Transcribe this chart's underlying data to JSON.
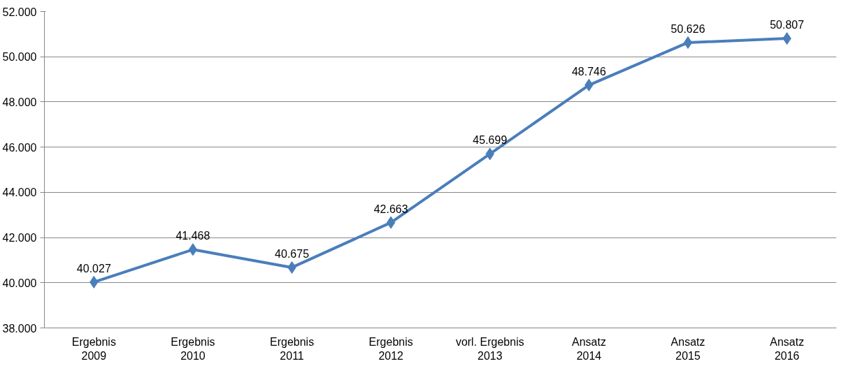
{
  "chart_data": {
    "type": "line",
    "categories": [
      "Ergebnis\n2009",
      "Ergebnis\n2010",
      "Ergebnis\n2011",
      "Ergebnis\n2012",
      "vorl. Ergebnis\n2013",
      "Ansatz\n2014",
      "Ansatz\n2015",
      "Ansatz\n2016"
    ],
    "series": [
      {
        "color": "#4a7ebb",
        "values": [
          40027,
          41468,
          40675,
          42663,
          45699,
          48746,
          50626,
          50807
        ],
        "value_labels": [
          "40.027",
          "41.468",
          "40.675",
          "42.663",
          "45.699",
          "48.746",
          "50.626",
          "50.807"
        ]
      }
    ],
    "ylim": [
      38000,
      52000
    ],
    "yticks": [
      {
        "value": 38000,
        "label": "38.000"
      },
      {
        "value": 40000,
        "label": "40.000"
      },
      {
        "value": 42000,
        "label": "42.000"
      },
      {
        "value": 44000,
        "label": "44.000"
      },
      {
        "value": 46000,
        "label": "46.000"
      },
      {
        "value": 48000,
        "label": "48.000"
      },
      {
        "value": 50000,
        "label": "50.000"
      },
      {
        "value": 52000,
        "label": "52.000"
      }
    ],
    "grid": "y",
    "marker": "diamond",
    "line_style": "solid"
  }
}
